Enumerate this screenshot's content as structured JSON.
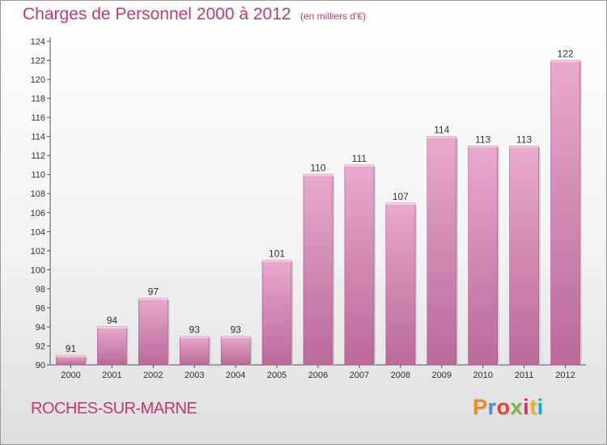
{
  "header": {
    "title": "Charges de Personnel 2000 à 2012",
    "subtitle": "(en milliers d'€)"
  },
  "footer": {
    "commune": "ROCHES-SUR-MARNE",
    "logo_text": "Proxiti",
    "logo_colors": [
      "#f08a1c",
      "#4a90d9",
      "#e8412c",
      "#7ab648",
      "#d6336c",
      "#f0b41c",
      "#1ea3d8"
    ]
  },
  "colors": {
    "title": "#c03a78",
    "bar_light": "#e9a9cd",
    "bar_dark": "#b96a97"
  },
  "chart_data": {
    "type": "bar",
    "title": "Charges de Personnel 2000 à 2012",
    "subtitle": "(en milliers d'€)",
    "categories": [
      "2000",
      "2001",
      "2002",
      "2003",
      "2004",
      "2005",
      "2006",
      "2007",
      "2008",
      "2009",
      "2010",
      "2011",
      "2012"
    ],
    "values": [
      91,
      94,
      97,
      93,
      93,
      101,
      110,
      111,
      107,
      114,
      113,
      113,
      122
    ],
    "ylim": [
      90,
      124
    ],
    "yticks": [
      90,
      92,
      94,
      96,
      98,
      100,
      102,
      104,
      106,
      108,
      110,
      112,
      114,
      116,
      118,
      120,
      122,
      124
    ],
    "grid": false,
    "legend": "none"
  }
}
